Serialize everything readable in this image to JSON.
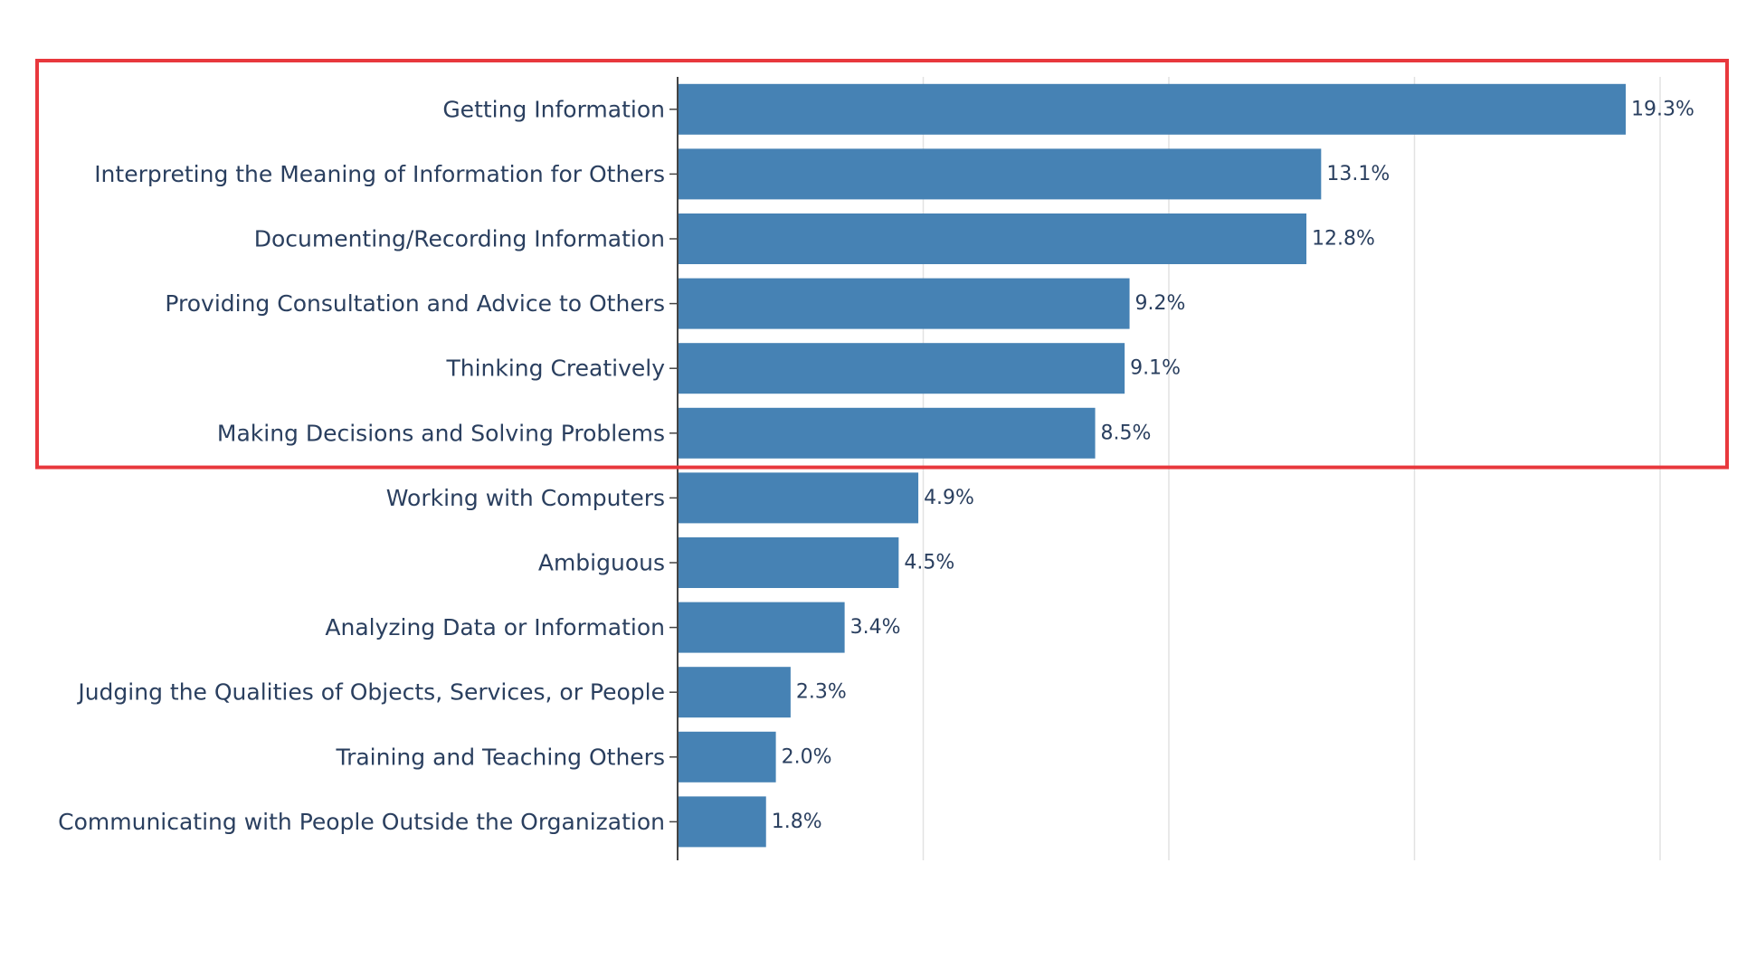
{
  "chart_data": {
    "type": "bar",
    "orientation": "horizontal",
    "title": "",
    "xlabel": "",
    "ylabel": "",
    "categories": [
      "Getting Information",
      "Interpreting the Meaning of Information for Others",
      "Documenting/Recording Information",
      "Providing Consultation and Advice to Others",
      "Thinking Creatively",
      "Making Decisions and Solving Problems",
      "Working with Computers",
      "Ambiguous",
      "Analyzing Data or Information",
      "Judging the Qualities of Objects, Services, or People",
      "Training and Teaching Others",
      "Communicating with People Outside the Organization"
    ],
    "values": [
      19.3,
      13.1,
      12.8,
      9.2,
      9.1,
      8.5,
      4.9,
      4.5,
      3.4,
      2.3,
      2.0,
      1.8
    ],
    "value_labels": [
      "19.3%",
      "13.1%",
      "12.8%",
      "9.2%",
      "9.1%",
      "8.5%",
      "4.9%",
      "4.5%",
      "3.4%",
      "2.3%",
      "2.0%",
      "1.8%"
    ],
    "xlim": [
      0,
      20
    ],
    "grid": true,
    "tick_labels_visible": false,
    "highlight": {
      "shape": "rectangle",
      "covers_categories": [
        "Getting Information",
        "Interpreting the Meaning of Information for Others",
        "Documenting/Recording Information",
        "Providing Consultation and Advice to Others",
        "Thinking Creatively",
        "Making Decisions and Solving Problems"
      ]
    }
  },
  "colors": {
    "bar": "#4682b4",
    "grid": "#e2e2e2",
    "axis": "#444444",
    "label": "#2a3f5f",
    "highlight": "#e8383d",
    "background": "#ffffff"
  }
}
